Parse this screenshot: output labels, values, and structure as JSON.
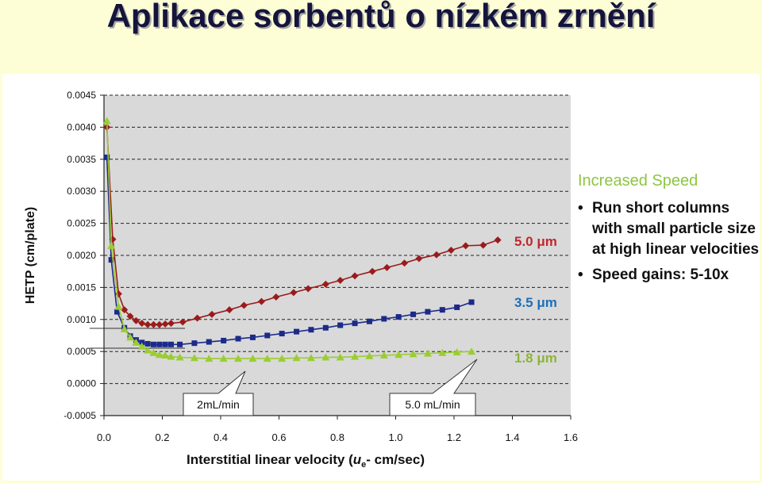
{
  "slide": {
    "title": "Aplikace sorbentů o nízkém zrnění"
  },
  "side_panel": {
    "heading": "Increased Speed",
    "bullets": [
      "Run short columns with small particle size at high linear velocities",
      "Speed gains: 5-10x"
    ]
  },
  "colors": {
    "series_5_0": "#9b1b1b",
    "series_3_5": "#1c2a8a",
    "series_1_8": "#9acd32",
    "label_5_0": "#c0272d",
    "label_3_5": "#1f6fb5",
    "label_1_8": "#8db33a",
    "plot_bg": "#d9d9d9"
  },
  "chart_data": {
    "type": "line",
    "xlabel_parts": {
      "before": "Interstitial linear velocity (",
      "italic": "u",
      "sub": "e",
      "after": "- cm/sec)"
    },
    "ylabel": "HETP (cm/plate)",
    "xlim": [
      0,
      1.6
    ],
    "ylim": [
      -0.0005,
      0.0045
    ],
    "xticks": [
      "0.0",
      "0.2",
      "0.4",
      "0.6",
      "0.8",
      "1.0",
      "1.2",
      "1.4",
      "1.6"
    ],
    "yticks": [
      "0.0045",
      "0.0040",
      "0.0035",
      "0.0030",
      "0.0025",
      "0.0020",
      "0.0015",
      "0.0010",
      "0.0005",
      "0.0000",
      "-0.0005"
    ],
    "grid": "horizontal dashed",
    "series": [
      {
        "name": "5.0 μm",
        "marker": "diamond",
        "x": [
          0.01,
          0.03,
          0.05,
          0.07,
          0.09,
          0.11,
          0.13,
          0.15,
          0.17,
          0.19,
          0.21,
          0.23,
          0.27,
          0.32,
          0.37,
          0.43,
          0.48,
          0.54,
          0.59,
          0.65,
          0.7,
          0.76,
          0.81,
          0.86,
          0.92,
          0.97,
          1.03,
          1.08,
          1.14,
          1.19,
          1.24,
          1.3,
          1.35
        ],
        "y": [
          0.004,
          0.00225,
          0.0014,
          0.00115,
          0.00105,
          0.00098,
          0.00094,
          0.00092,
          0.00092,
          0.00092,
          0.00093,
          0.00094,
          0.00096,
          0.00102,
          0.00108,
          0.00115,
          0.00122,
          0.00128,
          0.00135,
          0.00142,
          0.00148,
          0.00155,
          0.00161,
          0.00168,
          0.00175,
          0.00181,
          0.00188,
          0.00195,
          0.00201,
          0.00208,
          0.00215,
          0.00216,
          0.00224
        ]
      },
      {
        "name": "3.5 μm",
        "marker": "square",
        "x": [
          0.01,
          0.025,
          0.045,
          0.07,
          0.09,
          0.11,
          0.13,
          0.15,
          0.17,
          0.19,
          0.21,
          0.23,
          0.26,
          0.31,
          0.36,
          0.41,
          0.46,
          0.51,
          0.56,
          0.61,
          0.66,
          0.71,
          0.76,
          0.81,
          0.86,
          0.91,
          0.96,
          1.01,
          1.06,
          1.11,
          1.16,
          1.21,
          1.26
        ],
        "y": [
          0.00353,
          0.00193,
          0.00112,
          0.00087,
          0.00074,
          0.00068,
          0.00064,
          0.00062,
          0.00061,
          0.00061,
          0.00061,
          0.00061,
          0.00061,
          0.00063,
          0.00065,
          0.00067,
          0.0007,
          0.00072,
          0.00075,
          0.00078,
          0.00081,
          0.00084,
          0.00087,
          0.00091,
          0.00094,
          0.00097,
          0.00101,
          0.00104,
          0.00108,
          0.00112,
          0.00115,
          0.00119,
          0.00127
        ]
      },
      {
        "name": "1.8 μm",
        "marker": "triangle",
        "x": [
          0.01,
          0.025,
          0.05,
          0.07,
          0.09,
          0.11,
          0.13,
          0.15,
          0.17,
          0.19,
          0.21,
          0.23,
          0.26,
          0.31,
          0.36,
          0.41,
          0.46,
          0.51,
          0.56,
          0.61,
          0.66,
          0.71,
          0.76,
          0.81,
          0.86,
          0.91,
          0.96,
          1.01,
          1.06,
          1.11,
          1.16,
          1.21,
          1.26
        ],
        "y": [
          0.0041,
          0.00215,
          0.0012,
          0.00085,
          0.00072,
          0.00064,
          0.00058,
          0.00052,
          0.00048,
          0.00045,
          0.00044,
          0.00042,
          0.00041,
          0.0004,
          0.00039,
          0.00039,
          0.00039,
          0.00039,
          0.00039,
          0.00039,
          0.0004,
          0.0004,
          0.00041,
          0.00041,
          0.00042,
          0.00043,
          0.00044,
          0.00045,
          0.00046,
          0.00047,
          0.00048,
          0.00049,
          0.0005
        ]
      }
    ],
    "series_labels": [
      "5.0 μm",
      "3.5 μm",
      "1.8 μm"
    ],
    "callouts": [
      "2mL/min",
      "5.0 mL/min"
    ]
  }
}
